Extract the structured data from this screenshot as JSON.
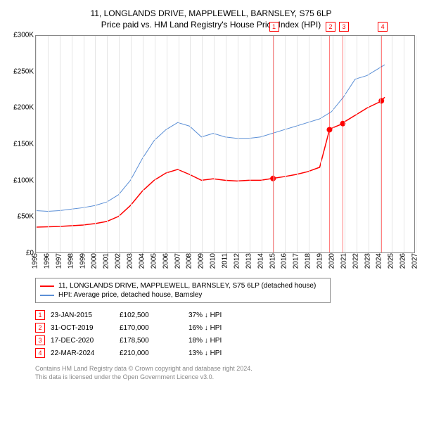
{
  "title1": "11, LONGLANDS DRIVE, MAPPLEWELL, BARNSLEY, S75 6LP",
  "title2": "Price paid vs. HM Land Registry's House Price Index (HPI)",
  "chart": {
    "type": "line",
    "ylim": [
      0,
      300000
    ],
    "ytick_step": 50000,
    "yticks": [
      "£0",
      "£50K",
      "£100K",
      "£150K",
      "£200K",
      "£250K",
      "£300K"
    ],
    "xlim": [
      1995,
      2027
    ],
    "xticks": [
      1995,
      1996,
      1997,
      1998,
      1999,
      2000,
      2001,
      2002,
      2003,
      2004,
      2005,
      2006,
      2007,
      2008,
      2009,
      2010,
      2011,
      2012,
      2013,
      2014,
      2015,
      2016,
      2017,
      2018,
      2019,
      2020,
      2021,
      2022,
      2023,
      2024,
      2025,
      2026,
      2027
    ],
    "series": [
      {
        "name": "11, LONGLANDS DRIVE, MAPPLEWELL, BARNSLEY, S75 6LP (detached house)",
        "color": "#ff0000",
        "width": 1.5,
        "data": [
          [
            1995,
            35000
          ],
          [
            1996,
            35500
          ],
          [
            1997,
            36000
          ],
          [
            1998,
            37000
          ],
          [
            1999,
            38000
          ],
          [
            2000,
            40000
          ],
          [
            2001,
            43000
          ],
          [
            2002,
            50000
          ],
          [
            2003,
            65000
          ],
          [
            2004,
            85000
          ],
          [
            2005,
            100000
          ],
          [
            2006,
            110000
          ],
          [
            2007,
            115000
          ],
          [
            2008,
            108000
          ],
          [
            2009,
            100000
          ],
          [
            2010,
            102000
          ],
          [
            2011,
            100000
          ],
          [
            2012,
            99000
          ],
          [
            2013,
            100000
          ],
          [
            2014,
            100000
          ],
          [
            2015,
            102500
          ],
          [
            2016,
            105000
          ],
          [
            2017,
            108000
          ],
          [
            2018,
            112000
          ],
          [
            2019,
            118000
          ],
          [
            2019.83,
            170000
          ],
          [
            2020,
            172000
          ],
          [
            2020.96,
            178500
          ],
          [
            2021,
            180000
          ],
          [
            2022,
            190000
          ],
          [
            2023,
            200000
          ],
          [
            2024,
            208000
          ],
          [
            2024.22,
            210000
          ],
          [
            2024.5,
            215000
          ]
        ]
      },
      {
        "name": "HPI: Average price, detached house, Barnsley",
        "color": "#5b8fd6",
        "width": 1,
        "data": [
          [
            1995,
            58000
          ],
          [
            1996,
            57000
          ],
          [
            1997,
            58000
          ],
          [
            1998,
            60000
          ],
          [
            1999,
            62000
          ],
          [
            2000,
            65000
          ],
          [
            2001,
            70000
          ],
          [
            2002,
            80000
          ],
          [
            2003,
            100000
          ],
          [
            2004,
            130000
          ],
          [
            2005,
            155000
          ],
          [
            2006,
            170000
          ],
          [
            2007,
            180000
          ],
          [
            2008,
            175000
          ],
          [
            2009,
            160000
          ],
          [
            2010,
            165000
          ],
          [
            2011,
            160000
          ],
          [
            2012,
            158000
          ],
          [
            2013,
            158000
          ],
          [
            2014,
            160000
          ],
          [
            2015,
            165000
          ],
          [
            2016,
            170000
          ],
          [
            2017,
            175000
          ],
          [
            2018,
            180000
          ],
          [
            2019,
            185000
          ],
          [
            2020,
            195000
          ],
          [
            2021,
            215000
          ],
          [
            2022,
            240000
          ],
          [
            2023,
            245000
          ],
          [
            2024,
            255000
          ],
          [
            2024.5,
            260000
          ]
        ]
      }
    ],
    "markers": [
      {
        "num": "1",
        "x": 2015.06,
        "y": 102500
      },
      {
        "num": "2",
        "x": 2019.83,
        "y": 170000
      },
      {
        "num": "3",
        "x": 2020.96,
        "y": 178500
      },
      {
        "num": "4",
        "x": 2024.22,
        "y": 210000
      }
    ],
    "marker_color": "#ff0000",
    "background_color": "#ffffff",
    "grid_color": "#e5e5e5"
  },
  "legend": [
    {
      "color": "#ff0000",
      "label": "11, LONGLANDS DRIVE, MAPPLEWELL, BARNSLEY, S75 6LP (detached house)"
    },
    {
      "color": "#5b8fd6",
      "label": "HPI: Average price, detached house, Barnsley"
    }
  ],
  "sales": [
    {
      "num": "1",
      "date": "23-JAN-2015",
      "price": "£102,500",
      "delta": "37% ↓ HPI"
    },
    {
      "num": "2",
      "date": "31-OCT-2019",
      "price": "£170,000",
      "delta": "16% ↓ HPI"
    },
    {
      "num": "3",
      "date": "17-DEC-2020",
      "price": "£178,500",
      "delta": "18% ↓ HPI"
    },
    {
      "num": "4",
      "date": "22-MAR-2024",
      "price": "£210,000",
      "delta": "13% ↓ HPI"
    }
  ],
  "footer1": "Contains HM Land Registry data © Crown copyright and database right 2024.",
  "footer2": "This data is licensed under the Open Government Licence v3.0."
}
